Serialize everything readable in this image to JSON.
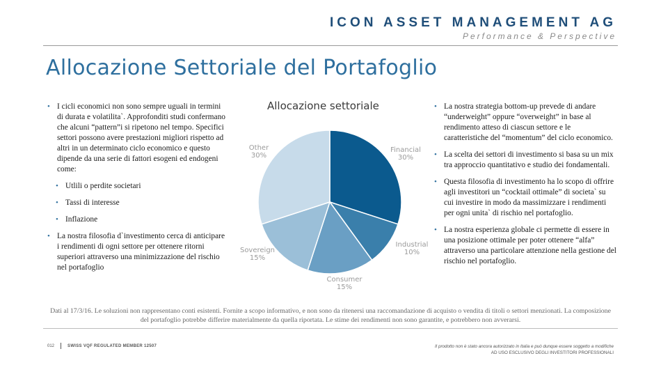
{
  "header": {
    "brand_name": "ICON ASSET MANAGEMENT AG",
    "brand_tagline": "Performance & Perspective",
    "brand_color": "#1f4e79"
  },
  "page_title": "Allocazione Settoriale del Portafoglio",
  "left_column": {
    "bullets": [
      {
        "text": "I cicli economici non sono sempre uguali in termini di durata e volatilita`. Approfonditi studi confermano che alcuni “pattern”i si ripetono nel tempo. Specifici settori possono avere prestazioni migliori rispetto ad altri in un determinato ciclo economico e questo dipende da una serie di fattori esogeni ed endogeni come:",
        "level": 1
      },
      {
        "text": "Utlili o perdite societari",
        "level": 2
      },
      {
        "text": "Tassi di interesse",
        "level": 2
      },
      {
        "text": "Inflazione",
        "level": 2
      },
      {
        "text": "La nostra filosofia d`investimento cerca di anticipare i rendimenti di ogni settore per ottenere ritorni superiori attraverso una minimizzazione del rischio nel portafoglio",
        "level": 1
      }
    ]
  },
  "right_column": {
    "bullets": [
      {
        "text": "La nostra strategia bottom-up prevede di andare “underweight” oppure “overweight” in base al rendimento atteso di ciascun settore e le caratteristiche del “momentum” del ciclo economico."
      },
      {
        "text": "La scelta dei settori di investimento si basa su un mix tra approccio quantitativo e studio dei fondamentali."
      },
      {
        "text": "Questa filosofia di investimento ha lo scopo di offrire agli investitori un “cocktail ottimale” di societa` su cui investire in modo da massimizzare i rendimenti per ogni unita` di rischio nel portafoglio."
      },
      {
        "text": "La nostra esperienza globale ci permette di essere in una posizione ottimale per poter ottenere “alfa” attraverso una particolare attenzione nella gestione del rischio nel portafoglio."
      }
    ]
  },
  "chart_data": {
    "type": "pie",
    "title": "Allocazione settoriale",
    "categories": [
      "Financial",
      "Industrial",
      "Consumer",
      "Sovereign",
      "Other"
    ],
    "values": [
      30,
      10,
      15,
      15,
      30
    ],
    "value_labels": [
      "30%",
      "10%",
      "15%",
      "15%",
      "30%"
    ],
    "colors": [
      "#0b5a8e",
      "#3a7fab",
      "#6a9fc4",
      "#9bbfd8",
      "#c7dbea"
    ],
    "start_angle_deg": 0,
    "direction": "clockwise",
    "legend": "none"
  },
  "disclaimer": "Dati al 17/3/16.  Le soluzioni non rappresentano conti esistenti. Fornite a scopo informativo, e non sono da ritenersi una raccomandazione di acquisto o vendita di titoli o settori menzionati. La composizione del portafoglio potrebbe differire materialmente da quella riportata. Le stime dei rendimenti non sono garantite, e potrebbero non avverarsi.",
  "footer": {
    "page_number": "012",
    "member_text": "SWISS VQF REGULATED MEMBER 12507",
    "notice_line1": "Il prodotto non è stato ancora autorizzato in Italia e può dunque essere soggetto a modifiche",
    "notice_line2": "AD USO ESCLUSIVO DEGLI INVESTITORI PROFESSIONALI"
  }
}
